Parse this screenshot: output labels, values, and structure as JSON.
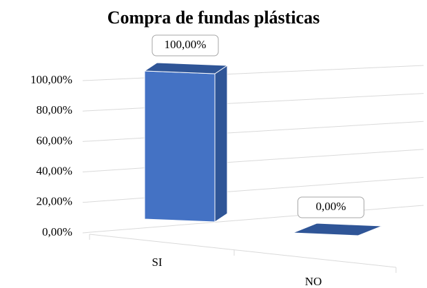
{
  "chart_data": {
    "type": "bar3d",
    "title": "Compra de fundas plásticas",
    "categories": [
      "SI",
      "NO"
    ],
    "values": [
      100,
      0
    ],
    "value_labels": [
      "100,00%",
      "0,00%"
    ],
    "color": "#4472c4",
    "ylim": [
      0,
      100
    ],
    "yticks": [
      {
        "value": 0,
        "label": "0,00%"
      },
      {
        "value": 20,
        "label": "20,00%"
      },
      {
        "value": 40,
        "label": "40,00%"
      },
      {
        "value": 60,
        "label": "60,00%"
      },
      {
        "value": 80,
        "label": "80,00%"
      },
      {
        "value": 100,
        "label": "100,00%"
      }
    ],
    "grid": true
  }
}
